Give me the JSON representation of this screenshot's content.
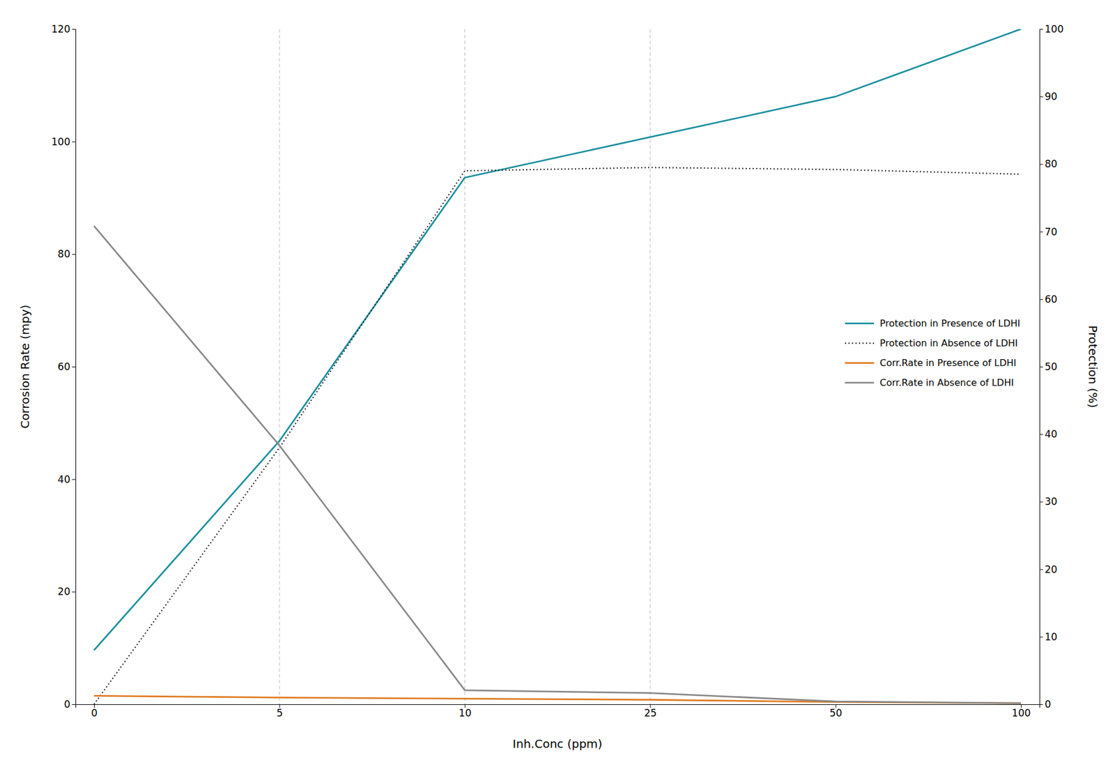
{
  "chart_data": {
    "type": "line",
    "xlabel": "Inh.Conc (ppm)",
    "ylabel": "Corrosion Rate (mpy)",
    "y2label": "Protection (%)",
    "categories": [
      "0",
      "5",
      "10",
      "25",
      "50",
      "100"
    ],
    "series": [
      {
        "name": "Protection in Presence of LDHI",
        "color": "#1a8f9f",
        "line_style": "solid",
        "axis": "y2",
        "values": [
          8,
          39,
          78,
          84,
          90,
          100
        ]
      },
      {
        "name": "Protection in Absence of LDHI",
        "color": "#222222",
        "line_style": "dotted",
        "axis": "y2",
        "values": [
          0,
          38,
          79,
          79.5,
          79.2,
          78.5
        ]
      },
      {
        "name": "Corr.Rate in Presence of LDHI",
        "color": "#e07a20",
        "line_style": "solid",
        "values": [
          1.5,
          1.2,
          1.0,
          0.8,
          0.4,
          0.2
        ]
      },
      {
        "name": "Corr.Rate in Absence of LDHI",
        "color": "#888888",
        "line_style": "solid",
        "values": [
          85,
          46,
          2.5,
          2.0,
          0.5,
          0.2
        ]
      }
    ],
    "vlines": [
      "5",
      "10",
      "25"
    ],
    "ylim": [
      0,
      120
    ],
    "yticks": [
      0,
      20,
      40,
      60,
      80,
      100,
      120
    ],
    "y2lim": [
      0,
      100
    ],
    "y2ticks": [
      0,
      10,
      20,
      30,
      40,
      50,
      60,
      70,
      80,
      90,
      100
    ],
    "grid": false,
    "legend": "right"
  }
}
